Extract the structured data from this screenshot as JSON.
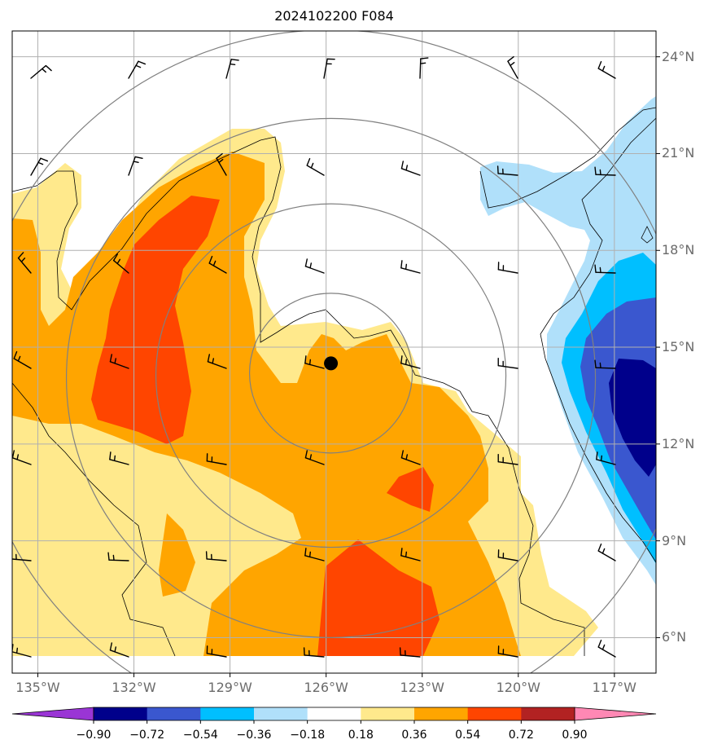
{
  "title": "2024102200 F084",
  "map": {
    "lat_labels": [
      "24°N",
      "21°N",
      "18°N",
      "15°N",
      "12°N",
      "9°N",
      "6°N"
    ],
    "lat_values": [
      24,
      21,
      18,
      15,
      12,
      9,
      6
    ],
    "lon_labels": [
      "135°W",
      "132°W",
      "129°W",
      "126°W",
      "123°W",
      "120°W",
      "117°W"
    ],
    "lon_values": [
      -135,
      -132,
      -129,
      -126,
      -123,
      -120,
      -117
    ],
    "extent": {
      "lon_min": -135.8,
      "lon_max": -115.7,
      "lat_min": 4.9,
      "lat_max": 24.8
    },
    "storm_center": {
      "lon": -125.85,
      "lat": 14.5,
      "marker": "filled-circle",
      "color": "#000000"
    },
    "range_rings_center": {
      "lon": -125.85,
      "lat": 14.5
    }
  },
  "colorbar": {
    "labels": [
      "−0.90",
      "−0.72",
      "−0.54",
      "−0.36",
      "−0.18",
      "0.18",
      "0.36",
      "0.54",
      "0.72",
      "0.90"
    ],
    "levels": [
      -0.9,
      -0.72,
      -0.54,
      -0.36,
      -0.18,
      0.18,
      0.36,
      0.54,
      0.72,
      0.9
    ],
    "colors": [
      "#9a35d5",
      "#00008b",
      "#3a57cf",
      "#00bfff",
      "#b0e0fa",
      "#ffffff",
      "#ffe98c",
      "#ffa500",
      "#ff4500",
      "#b22222",
      "#ff88b4"
    ]
  }
}
